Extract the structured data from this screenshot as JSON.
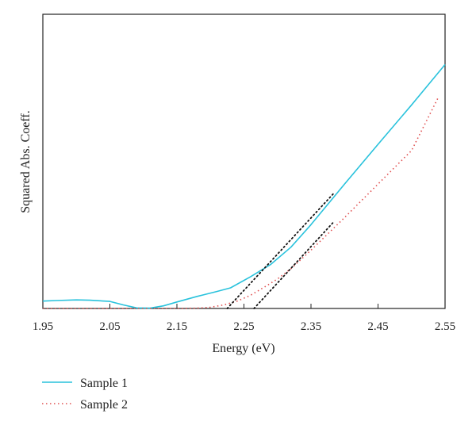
{
  "chart_data": {
    "type": "line",
    "title": "",
    "xlabel": "Energy (eV)",
    "ylabel": "Squared Abs. Coeff.",
    "xlim": [
      1.95,
      2.55
    ],
    "ylim": [
      0,
      1
    ],
    "xticks": [
      "1.95",
      "2.05",
      "2.15",
      "2.25",
      "2.35",
      "2.45",
      "2.55"
    ],
    "xtick_values": [
      1.95,
      2.05,
      2.15,
      2.25,
      2.35,
      2.45,
      2.55
    ],
    "grid": false,
    "legend_position": "bottom-left, below plot",
    "series": [
      {
        "name": "Sample 1",
        "color": "#29c2dc",
        "style": "solid",
        "x": [
          1.95,
          1.97,
          2.0,
          2.02,
          2.05,
          2.07,
          2.09,
          2.11,
          2.13,
          2.15,
          2.18,
          2.21,
          2.23,
          2.26,
          2.29,
          2.32,
          2.35,
          2.4,
          2.45,
          2.5,
          2.55
        ],
        "y": [
          0.025,
          0.027,
          0.029,
          0.028,
          0.024,
          0.012,
          0.002,
          0.001,
          0.009,
          0.022,
          0.041,
          0.058,
          0.07,
          0.108,
          0.15,
          0.208,
          0.285,
          0.423,
          0.558,
          0.692,
          0.829
        ]
      },
      {
        "name": "Sample 2",
        "color": "#e05050",
        "style": "dotted",
        "x": [
          1.95,
          2.05,
          2.1,
          2.15,
          2.18,
          2.2,
          2.22,
          2.24,
          2.26,
          2.28,
          2.3,
          2.32,
          2.35,
          2.4,
          2.45,
          2.5,
          2.54
        ],
        "y": [
          0.0,
          0.0,
          0.0,
          0.0,
          0.001,
          0.004,
          0.012,
          0.025,
          0.045,
          0.072,
          0.1,
          0.135,
          0.198,
          0.309,
          0.423,
          0.537,
          0.718
        ]
      }
    ],
    "tangent_lines": [
      {
        "color": "#111111",
        "style": "dotted",
        "x": [
          2.225,
          2.385
        ],
        "y": [
          0.0,
          0.394
        ]
      },
      {
        "color": "#111111",
        "style": "dotted",
        "x": [
          2.265,
          2.385
        ],
        "y": [
          0.0,
          0.297
        ]
      }
    ]
  }
}
